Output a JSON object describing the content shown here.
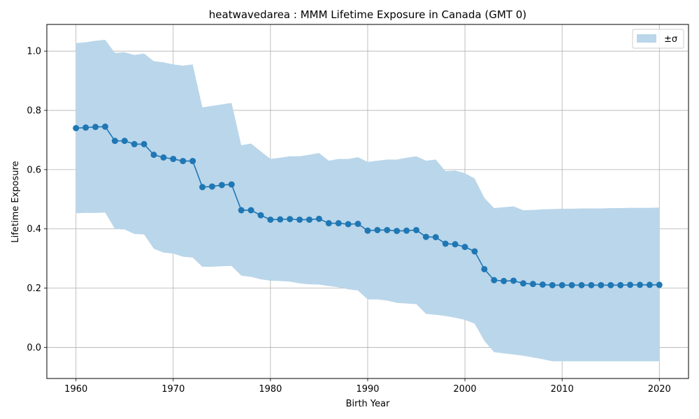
{
  "chart_data": {
    "type": "line",
    "title": "heatwavedarea : MMM Lifetime Exposure in Canada (GMT 0)",
    "xlabel": "Birth Year",
    "ylabel": "Lifetime Exposure",
    "xlim": [
      1957,
      2023
    ],
    "ylim": [
      -0.105,
      1.09
    ],
    "x_ticks": [
      1960,
      1970,
      1980,
      1990,
      2000,
      2010,
      2020
    ],
    "x_tick_labels": [
      "1960",
      "1970",
      "1980",
      "1990",
      "2000",
      "2010",
      "2020"
    ],
    "y_ticks": [
      0.0,
      0.2,
      0.4,
      0.6,
      0.8,
      1.0
    ],
    "y_tick_labels": [
      "0.0",
      "0.2",
      "0.4",
      "0.6",
      "0.8",
      "1.0"
    ],
    "grid": true,
    "legend_position": "top-right",
    "legend": [
      {
        "label": "±σ",
        "kind": "band"
      }
    ],
    "colors": {
      "line": "#1f77b4",
      "band": "#bad6ea",
      "grid": "#b0b0b0"
    },
    "x": [
      1960,
      1961,
      1962,
      1963,
      1964,
      1965,
      1966,
      1967,
      1968,
      1969,
      1970,
      1971,
      1972,
      1973,
      1974,
      1975,
      1976,
      1977,
      1978,
      1979,
      1980,
      1981,
      1982,
      1983,
      1984,
      1985,
      1986,
      1987,
      1988,
      1989,
      1990,
      1991,
      1992,
      1993,
      1994,
      1995,
      1996,
      1997,
      1998,
      1999,
      2000,
      2001,
      2002,
      2003,
      2004,
      2005,
      2006,
      2007,
      2008,
      2009,
      2010,
      2011,
      2012,
      2013,
      2014,
      2015,
      2016,
      2017,
      2018,
      2019,
      2020
    ],
    "series": [
      {
        "values": [
          0.74,
          0.742,
          0.744,
          0.745,
          0.697,
          0.697,
          0.686,
          0.686,
          0.65,
          0.641,
          0.636,
          0.629,
          0.629,
          0.541,
          0.543,
          0.548,
          0.55,
          0.463,
          0.463,
          0.446,
          0.431,
          0.432,
          0.433,
          0.431,
          0.431,
          0.434,
          0.419,
          0.419,
          0.416,
          0.417,
          0.394,
          0.396,
          0.396,
          0.393,
          0.394,
          0.396,
          0.373,
          0.372,
          0.35,
          0.348,
          0.339,
          0.324,
          0.264,
          0.227,
          0.224,
          0.225,
          0.216,
          0.214,
          0.212,
          0.21,
          0.21,
          0.21,
          0.21,
          0.21,
          0.21,
          0.21,
          0.21,
          0.211,
          0.211,
          0.211,
          0.211
        ],
        "upper": [
          1.027,
          1.03,
          1.035,
          1.038,
          0.994,
          0.996,
          0.987,
          0.992,
          0.966,
          0.962,
          0.955,
          0.951,
          0.955,
          0.81,
          0.815,
          0.82,
          0.825,
          0.682,
          0.688,
          0.662,
          0.636,
          0.64,
          0.645,
          0.645,
          0.65,
          0.656,
          0.63,
          0.636,
          0.636,
          0.642,
          0.626,
          0.63,
          0.634,
          0.634,
          0.64,
          0.645,
          0.63,
          0.634,
          0.595,
          0.597,
          0.588,
          0.57,
          0.505,
          0.47,
          0.473,
          0.476,
          0.463,
          0.464,
          0.466,
          0.467,
          0.468,
          0.468,
          0.469,
          0.469,
          0.469,
          0.47,
          0.47,
          0.471,
          0.471,
          0.471,
          0.472
        ],
        "lower": [
          0.453,
          0.454,
          0.454,
          0.455,
          0.4,
          0.398,
          0.383,
          0.381,
          0.333,
          0.32,
          0.317,
          0.306,
          0.303,
          0.272,
          0.272,
          0.274,
          0.275,
          0.242,
          0.238,
          0.23,
          0.225,
          0.224,
          0.222,
          0.216,
          0.213,
          0.212,
          0.207,
          0.203,
          0.196,
          0.192,
          0.162,
          0.162,
          0.158,
          0.15,
          0.148,
          0.146,
          0.113,
          0.11,
          0.106,
          0.1,
          0.093,
          0.08,
          0.022,
          -0.016,
          -0.02,
          -0.024,
          -0.028,
          -0.034,
          -0.04,
          -0.047,
          -0.047,
          -0.047,
          -0.047,
          -0.047,
          -0.047,
          -0.047,
          -0.047,
          -0.047,
          -0.047,
          -0.047,
          -0.047
        ]
      }
    ]
  }
}
